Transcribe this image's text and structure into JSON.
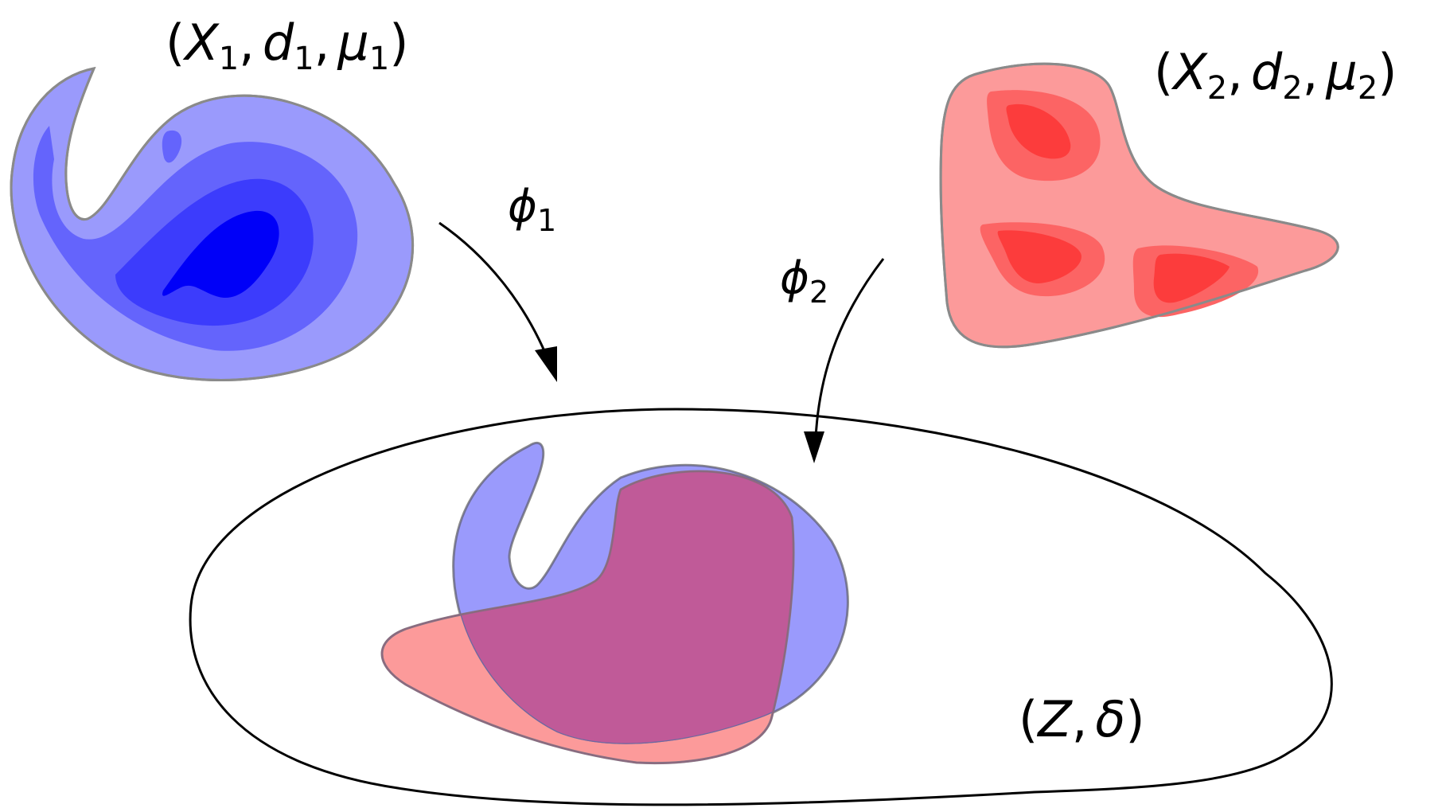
{
  "labels": {
    "space1": {
      "open": "(",
      "X": "X",
      "comma": ",",
      "d": "d",
      "mu": "μ",
      "sub": "1",
      "close": ")"
    },
    "space2": {
      "open": "(",
      "X": "X",
      "comma": ",",
      "d": "d",
      "mu": "μ",
      "sub": "2",
      "close": ")"
    },
    "target": {
      "open": "(",
      "Z": "Z",
      "comma": ",",
      "delta": "δ",
      "close": ")"
    },
    "map1": {
      "phi": "ϕ",
      "sub": "1"
    },
    "map2": {
      "phi": "ϕ",
      "sub": "2"
    }
  },
  "colors": {
    "blue_levels": [
      "#9a9afc",
      "#6464fc",
      "#3c3cfc",
      "#0000f8"
    ],
    "red_levels": [
      "#fc9a9a",
      "#fc6464",
      "#fc3c3c"
    ],
    "overlap": "#c05a98",
    "outline": "#000000"
  }
}
